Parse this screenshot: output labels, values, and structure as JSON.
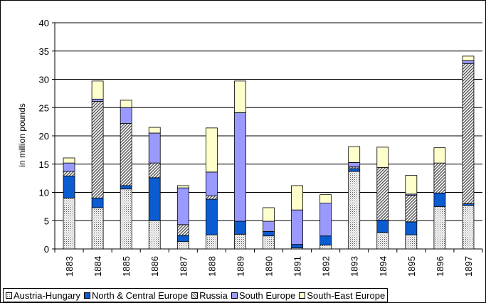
{
  "chart_data": {
    "type": "bar",
    "stacked": true,
    "title": "",
    "xlabel": "",
    "ylabel": "in million pounds",
    "ylim": [
      0,
      40
    ],
    "yticks": [
      0,
      5,
      10,
      15,
      20,
      25,
      30,
      35,
      40
    ],
    "grid": true,
    "legend_position": "bottom",
    "categories": [
      "1883",
      "1884",
      "1885",
      "1886",
      "1887",
      "1888",
      "1889",
      "1890",
      "1891",
      "1892",
      "1893",
      "1894",
      "1895",
      "1896",
      "1897"
    ],
    "series": [
      {
        "name": "Austria-Hungary",
        "pattern": "dots",
        "color": "#ffffff",
        "values": [
          9.0,
          7.3,
          10.6,
          5.0,
          1.3,
          2.5,
          2.6,
          2.3,
          0.2,
          0.7,
          13.7,
          2.9,
          2.5,
          7.5,
          7.7
        ]
      },
      {
        "name": "North & Central Europe",
        "pattern": "solid",
        "color": "#0b5bd1",
        "values": [
          3.9,
          1.7,
          0.6,
          7.6,
          1.1,
          6.3,
          2.3,
          0.8,
          0.6,
          1.6,
          0.5,
          2.2,
          2.3,
          2.4,
          0.3
        ]
      },
      {
        "name": "Russia",
        "pattern": "hatch",
        "color": "#ffffff",
        "values": [
          0.8,
          17.1,
          11.0,
          2.6,
          1.9,
          0.6,
          0.0,
          0.0,
          0.0,
          0.0,
          0.3,
          9.3,
          4.7,
          5.3,
          24.8
        ]
      },
      {
        "name": "South Europe",
        "pattern": "solid",
        "color": "#9999ff",
        "values": [
          1.5,
          0.4,
          2.8,
          5.3,
          6.5,
          4.2,
          19.2,
          1.8,
          6.1,
          5.8,
          0.8,
          0.0,
          0.2,
          0.0,
          0.5
        ]
      },
      {
        "name": "South-East Europe",
        "pattern": "solid",
        "color": "#ffffcc",
        "values": [
          0.9,
          3.2,
          1.3,
          1.0,
          0.4,
          7.8,
          5.6,
          2.4,
          4.3,
          1.5,
          2.8,
          3.6,
          3.3,
          2.7,
          0.8
        ]
      }
    ]
  }
}
